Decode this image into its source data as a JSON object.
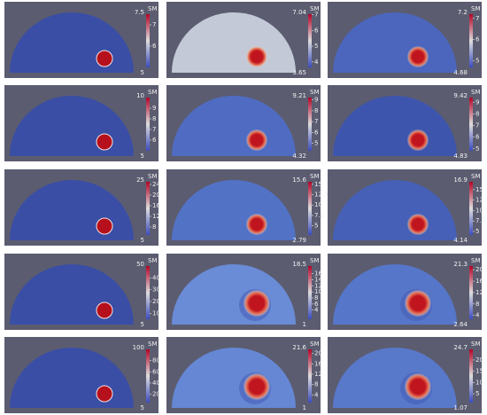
{
  "panels": [
    {
      "legend_title": "SM",
      "max": 7.5,
      "min": 5,
      "ticks": [
        7,
        6
      ],
      "fill": "#3a4ea6"
    },
    {
      "legend_title": "SM",
      "max": 7.04,
      "min": 3.65,
      "ticks": [
        7,
        6,
        5,
        4
      ],
      "fill": "#c3c9d6"
    },
    {
      "legend_title": "SM",
      "max": 7.2,
      "min": 4.68,
      "ticks": [
        7,
        6,
        5
      ],
      "fill": "#4b66bc"
    },
    {
      "legend_title": "SM",
      "max": 10,
      "min": 5,
      "ticks": [
        9,
        8,
        7,
        6
      ],
      "fill": "#3a4ea6"
    },
    {
      "legend_title": "SM",
      "max": 9.21,
      "min": 4.32,
      "ticks": [
        9,
        8,
        7,
        6,
        5
      ],
      "fill": "#4f6cc2"
    },
    {
      "legend_title": "SM",
      "max": 9.42,
      "min": 4.83,
      "ticks": [
        9,
        8,
        7,
        6,
        5
      ],
      "fill": "#3e55ad"
    },
    {
      "legend_title": "SM",
      "max": 25,
      "min": 5,
      "ticks": [
        24,
        20,
        16,
        12,
        8
      ],
      "fill": "#3a4ea6"
    },
    {
      "legend_title": "SM",
      "max": 15.6,
      "min": 2.79,
      "ticks": [
        15,
        12.5,
        10,
        7.5,
        5
      ],
      "fill": "#5272c6"
    },
    {
      "legend_title": "SM",
      "max": 16.9,
      "min": 4.14,
      "ticks": [
        15,
        12.5,
        10,
        7.5,
        5
      ],
      "fill": "#4560b6"
    },
    {
      "legend_title": "SM",
      "max": 50,
      "min": 5,
      "ticks": [
        40,
        30,
        20,
        10
      ],
      "fill": "#3a4ea6"
    },
    {
      "legend_title": "SM",
      "max": 18.5,
      "min": 1,
      "ticks": [
        16,
        14,
        12,
        10,
        8,
        6,
        4
      ],
      "fill": "#6a8bd6"
    },
    {
      "legend_title": "SM",
      "max": 21.3,
      "min": 2.64,
      "ticks": [
        20,
        16,
        12,
        8,
        4
      ],
      "fill": "#5676c9"
    },
    {
      "legend_title": "SM",
      "max": 100,
      "min": 5,
      "ticks": [
        80,
        60,
        40,
        20
      ],
      "fill": "#3a4ea6"
    },
    {
      "legend_title": "SM",
      "max": 21.6,
      "min": 1,
      "ticks": [
        20,
        16,
        12,
        8,
        4
      ],
      "fill": "#6587d4"
    },
    {
      "legend_title": "SM",
      "max": 24.7,
      "min": 1.07,
      "ticks": [
        20,
        15,
        10,
        5
      ],
      "fill": "#5878ca"
    }
  ]
}
